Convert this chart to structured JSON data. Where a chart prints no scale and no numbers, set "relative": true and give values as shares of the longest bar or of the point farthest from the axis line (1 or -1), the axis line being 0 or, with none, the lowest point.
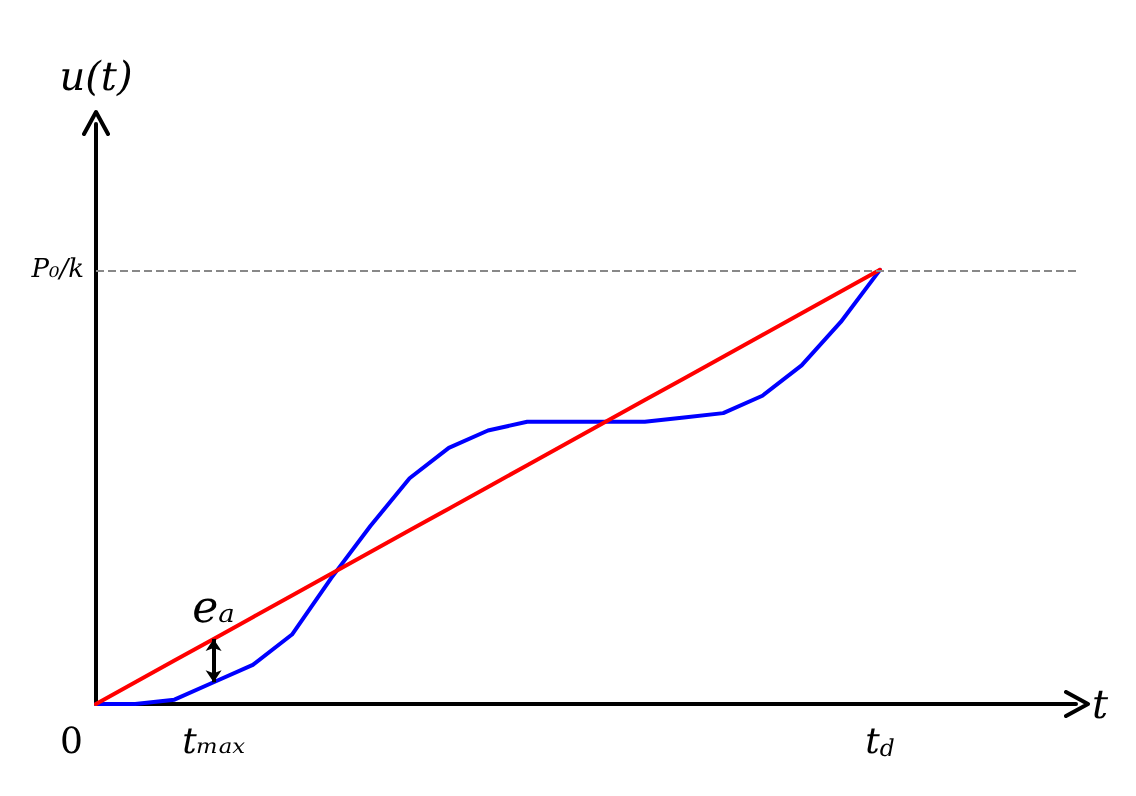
{
  "chart_data": {
    "type": "line",
    "relative": true,
    "ylabel": "u(t)",
    "xlabel": "t",
    "categories": [
      null,
      null,
      null,
      "tₘₐₓ",
      null,
      null,
      null,
      null,
      null,
      null,
      null,
      null,
      null,
      null,
      null,
      null,
      null,
      null,
      null,
      null,
      "t$_{d}$",
      null,
      null,
      null,
      null,
      null
    ],
    "series": [
      {
        "color": "#0000ff",
        "values": [
          0,
          0,
          0.01,
          0.05,
          0.09,
          0.16,
          0.29,
          0.41,
          0.52,
          0.59,
          0.63,
          0.65,
          0.65,
          0.65,
          0.65,
          0.66,
          0.67,
          0.71,
          0.78,
          0.88,
          1,
          null,
          null,
          null,
          null,
          null
        ]
      },
      {
        "color": "#ff0000",
        "values": [
          0,
          0.05,
          0.1,
          0.15,
          0.2,
          0.25,
          0.3,
          0.35,
          0.4,
          0.45,
          0.5,
          0.55,
          0.6,
          0.65,
          0.7,
          0.75,
          0.8,
          0.85,
          0.9,
          0.95,
          1,
          null,
          null,
          null,
          null,
          null
        ]
      }
    ],
    "ref_lines": [
      {
        "axis": "y",
        "value": 1,
        "label": "P₀/k",
        "color": "#888888",
        "line_style": "dashed"
      }
    ],
    "annotations": [
      "0",
      "eₐ"
    ],
    "marker": "none",
    "line_style": "solid",
    "grid": false
  }
}
